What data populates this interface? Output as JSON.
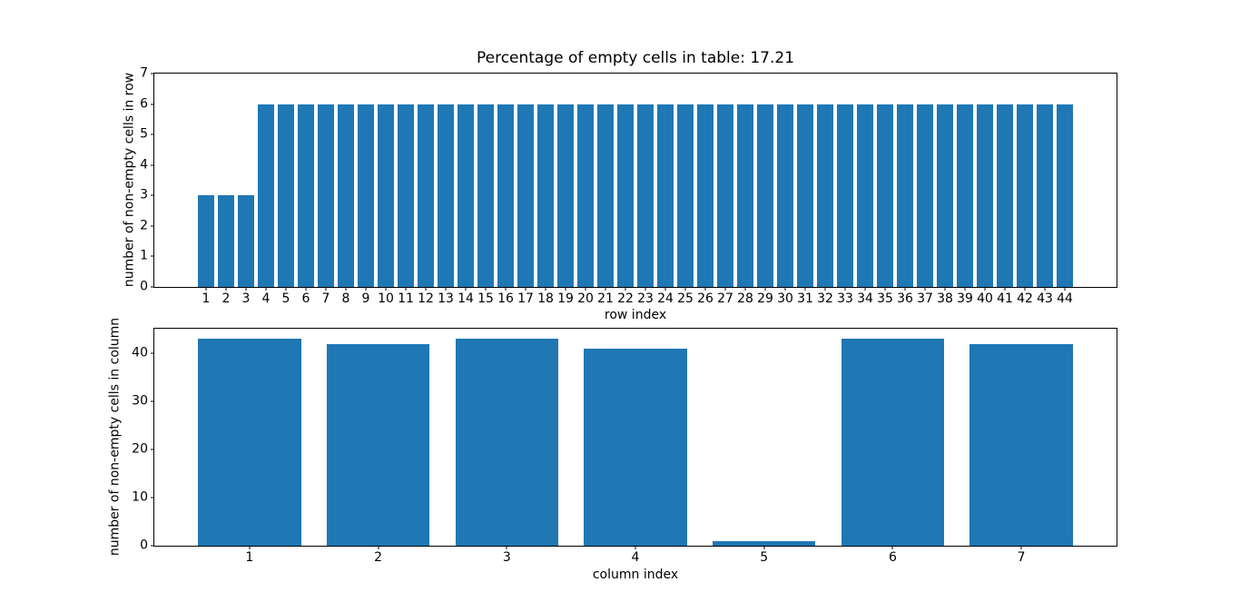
{
  "figure": {
    "background": "#ffffff",
    "text_color": "#000000"
  },
  "chart_data": [
    {
      "id": "non-empty-cells-per-row",
      "type": "bar",
      "title": "Percentage of empty cells in table: 17.21",
      "xlabel": "row index",
      "ylabel": "number of non-empty cells in row",
      "categories": [
        "1",
        "2",
        "3",
        "4",
        "5",
        "6",
        "7",
        "8",
        "9",
        "10",
        "11",
        "12",
        "13",
        "14",
        "15",
        "16",
        "17",
        "18",
        "19",
        "20",
        "21",
        "22",
        "23",
        "24",
        "25",
        "26",
        "27",
        "28",
        "29",
        "30",
        "31",
        "32",
        "33",
        "34",
        "35",
        "36",
        "37",
        "38",
        "39",
        "40",
        "41",
        "42",
        "43",
        "44"
      ],
      "values": [
        3,
        3,
        3,
        6,
        6,
        6,
        6,
        6,
        6,
        6,
        6,
        6,
        6,
        6,
        6,
        6,
        6,
        6,
        6,
        6,
        6,
        6,
        6,
        6,
        6,
        6,
        6,
        6,
        6,
        6,
        6,
        6,
        6,
        6,
        6,
        6,
        6,
        6,
        6,
        6,
        6,
        6,
        6,
        6
      ],
      "bar_color": "#1f77b4",
      "bar_width": 0.8,
      "xlim": [
        -1.59,
        46.59
      ],
      "ylim": [
        0,
        7
      ],
      "yticks": [
        0,
        1,
        2,
        3,
        4,
        5,
        6,
        7
      ],
      "grid": false,
      "legend": null
    },
    {
      "id": "non-empty-cells-per-column",
      "type": "bar",
      "title": "",
      "xlabel": "column index",
      "ylabel": "number of non-empty cells in column",
      "categories": [
        "1",
        "2",
        "3",
        "4",
        "5",
        "6",
        "7"
      ],
      "values": [
        43,
        42,
        43,
        41,
        1,
        43,
        42
      ],
      "bar_color": "#1f77b4",
      "bar_width": 0.8,
      "xlim": [
        0.26,
        7.74
      ],
      "ylim": [
        0,
        45.15
      ],
      "yticks": [
        0,
        10,
        20,
        30,
        40
      ],
      "grid": false,
      "legend": null
    }
  ]
}
